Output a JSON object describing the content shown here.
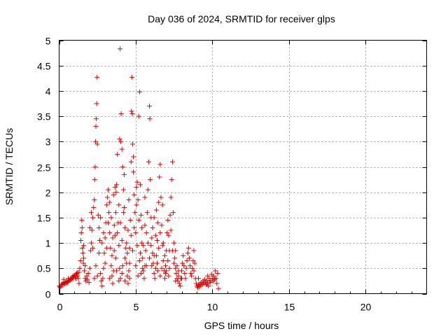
{
  "chart_data": {
    "type": "scatter",
    "title": "Day 036 of 2024, SRMTID for receiver glps",
    "xlabel": "GPS time / hours",
    "ylabel": "SRMTID / TECUs",
    "xlim": [
      0,
      24
    ],
    "ylim": [
      0,
      5
    ],
    "xticks": [
      0,
      5,
      10,
      15,
      20
    ],
    "xtick_labels": [
      "0",
      "5",
      "10",
      "15",
      "20"
    ],
    "yticks": [
      0,
      0.5,
      1,
      1.5,
      2,
      2.5,
      3,
      3.5,
      4,
      4.5,
      5
    ],
    "ytick_labels": [
      "0",
      "0.5",
      "1",
      "1.5",
      "2",
      "2.5",
      "3",
      "3.5",
      "4",
      "4.5",
      "5"
    ],
    "grid": true,
    "marker": "+",
    "marker_color": "#e00000",
    "series": [
      {
        "name": "SRMTID",
        "points": [
          [
            0.0,
            0.15
          ],
          [
            0.05,
            0.12
          ],
          [
            0.1,
            0.14
          ],
          [
            0.15,
            0.18
          ],
          [
            0.2,
            0.2
          ],
          [
            0.25,
            0.17
          ],
          [
            0.3,
            0.22
          ],
          [
            0.35,
            0.19
          ],
          [
            0.4,
            0.23
          ],
          [
            0.45,
            0.21
          ],
          [
            0.5,
            0.25
          ],
          [
            0.55,
            0.22
          ],
          [
            0.6,
            0.24
          ],
          [
            0.65,
            0.27
          ],
          [
            0.7,
            0.26
          ],
          [
            0.75,
            0.29
          ],
          [
            0.8,
            0.28
          ],
          [
            0.85,
            0.32
          ],
          [
            0.9,
            0.3
          ],
          [
            0.95,
            0.34
          ],
          [
            1.0,
            0.36
          ],
          [
            1.05,
            0.33
          ],
          [
            1.1,
            0.38
          ],
          [
            1.15,
            0.4
          ],
          [
            1.2,
            0.35
          ],
          [
            1.25,
            0.3
          ],
          [
            1.3,
            0.42
          ],
          [
            1.35,
            0.5
          ],
          [
            1.4,
            0.65
          ],
          [
            1.42,
            1.05
          ],
          [
            1.45,
            1.2
          ],
          [
            1.48,
            1.45
          ],
          [
            1.5,
            1.3
          ],
          [
            1.52,
            0.9
          ],
          [
            1.55,
            0.8
          ],
          [
            1.58,
            0.6
          ],
          [
            1.6,
            0.7
          ],
          [
            1.65,
            0.45
          ],
          [
            1.7,
            0.3
          ],
          [
            1.75,
            0.25
          ],
          [
            1.8,
            0.35
          ],
          [
            1.85,
            0.28
          ],
          [
            1.9,
            0.4
          ],
          [
            1.95,
            0.22
          ],
          [
            2.0,
            0.5
          ],
          [
            2.05,
            0.85
          ],
          [
            2.1,
            1.0
          ],
          [
            2.15,
            1.25
          ],
          [
            2.2,
            1.5
          ],
          [
            2.25,
            1.7
          ],
          [
            2.3,
            1.85
          ],
          [
            2.32,
            2.25
          ],
          [
            2.35,
            2.5
          ],
          [
            2.38,
            3.0
          ],
          [
            2.4,
            3.3
          ],
          [
            2.42,
            3.45
          ],
          [
            2.45,
            3.75
          ],
          [
            2.48,
            4.27
          ],
          [
            2.5,
            2.95
          ],
          [
            2.55,
            1.55
          ],
          [
            2.6,
            1.3
          ],
          [
            2.65,
            1.05
          ],
          [
            2.7,
            0.4
          ],
          [
            2.75,
            0.25
          ],
          [
            2.8,
            0.15
          ],
          [
            2.85,
            0.3
          ],
          [
            2.9,
            0.5
          ],
          [
            2.95,
            0.8
          ],
          [
            3.0,
            1.1
          ],
          [
            3.05,
            1.4
          ],
          [
            3.1,
            1.75
          ],
          [
            3.15,
            1.9
          ],
          [
            3.2,
            2.05
          ],
          [
            3.25,
            1.6
          ],
          [
            3.3,
            1.2
          ],
          [
            3.35,
            0.9
          ],
          [
            3.4,
            0.55
          ],
          [
            3.45,
            0.35
          ],
          [
            3.5,
            0.2
          ],
          [
            3.55,
            0.45
          ],
          [
            3.6,
            0.85
          ],
          [
            3.65,
            1.15
          ],
          [
            3.7,
            1.6
          ],
          [
            3.72,
            2.0
          ],
          [
            3.75,
            2.15
          ],
          [
            3.8,
            2.75
          ],
          [
            3.85,
            1.4
          ],
          [
            3.9,
            0.95
          ],
          [
            3.95,
            0.5
          ],
          [
            4.0,
            0.3
          ],
          [
            3.95,
            3.05
          ],
          [
            3.98,
            4.83
          ],
          [
            4.02,
            3.0
          ],
          [
            4.05,
            3.55
          ],
          [
            4.1,
            2.85
          ],
          [
            4.15,
            2.5
          ],
          [
            4.2,
            2.05
          ],
          [
            4.25,
            1.7
          ],
          [
            4.3,
            1.3
          ],
          [
            4.35,
            0.9
          ],
          [
            4.4,
            0.6
          ],
          [
            4.45,
            0.35
          ],
          [
            4.5,
            0.2
          ],
          [
            4.55,
            0.45
          ],
          [
            4.6,
            0.9
          ],
          [
            4.65,
            1.45
          ],
          [
            4.7,
            2.6
          ],
          [
            4.72,
            3.6
          ],
          [
            4.75,
            4.27
          ],
          [
            4.78,
            3.55
          ],
          [
            4.8,
            2.95
          ],
          [
            4.85,
            2.4
          ],
          [
            4.9,
            1.95
          ],
          [
            4.95,
            1.6
          ],
          [
            5.0,
            1.2
          ],
          [
            5.05,
            2.1
          ],
          [
            5.1,
            2.2
          ],
          [
            5.15,
            1.85
          ],
          [
            5.2,
            3.5
          ],
          [
            5.25,
            3.98
          ],
          [
            5.3,
            2.15
          ],
          [
            5.35,
            1.55
          ],
          [
            5.4,
            1.0
          ],
          [
            5.45,
            0.7
          ],
          [
            5.5,
            0.45
          ],
          [
            5.55,
            0.3
          ],
          [
            5.6,
            0.55
          ],
          [
            5.65,
            0.85
          ],
          [
            5.7,
            1.2
          ],
          [
            5.75,
            1.6
          ],
          [
            5.8,
            2.05
          ],
          [
            5.85,
            2.6
          ],
          [
            5.9,
            3.7
          ],
          [
            5.92,
            3.45
          ],
          [
            5.95,
            2.25
          ],
          [
            6.0,
            1.5
          ],
          [
            6.05,
            1.1
          ],
          [
            6.1,
            0.8
          ],
          [
            6.15,
            0.6
          ],
          [
            6.2,
            0.4
          ],
          [
            6.25,
            0.3
          ],
          [
            6.3,
            0.5
          ],
          [
            6.35,
            0.75
          ],
          [
            6.4,
            1.05
          ],
          [
            6.45,
            1.4
          ],
          [
            6.5,
            1.8
          ],
          [
            6.55,
            2.3
          ],
          [
            6.6,
            2.55
          ],
          [
            6.65,
            1.9
          ],
          [
            6.7,
            1.35
          ],
          [
            6.75,
            0.95
          ],
          [
            6.8,
            0.65
          ],
          [
            6.85,
            0.45
          ],
          [
            6.9,
            0.3
          ],
          [
            6.95,
            0.55
          ],
          [
            7.0,
            0.85
          ],
          [
            7.05,
            1.2
          ],
          [
            7.1,
            1.45
          ],
          [
            7.15,
            1.15
          ],
          [
            7.2,
            0.85
          ],
          [
            7.25,
            1.55
          ],
          [
            7.3,
            1.9
          ],
          [
            7.35,
            2.25
          ],
          [
            7.4,
            2.6
          ],
          [
            7.45,
            1.6
          ],
          [
            7.5,
            1.0
          ],
          [
            7.55,
            0.7
          ],
          [
            7.6,
            0.5
          ],
          [
            7.65,
            0.4
          ],
          [
            7.7,
            0.3
          ],
          [
            7.75,
            0.25
          ],
          [
            7.8,
            0.35
          ],
          [
            7.85,
            0.2
          ],
          [
            7.9,
            0.15
          ],
          [
            7.95,
            0.3
          ],
          [
            8.0,
            0.45
          ],
          [
            8.05,
            0.6
          ],
          [
            8.1,
            0.75
          ],
          [
            8.15,
            0.55
          ],
          [
            8.2,
            0.4
          ],
          [
            8.25,
            0.3
          ],
          [
            8.3,
            0.5
          ],
          [
            8.35,
            0.65
          ],
          [
            8.4,
            0.8
          ],
          [
            8.45,
            0.9
          ],
          [
            8.5,
            0.7
          ],
          [
            8.55,
            0.55
          ],
          [
            8.6,
            0.4
          ],
          [
            8.65,
            0.35
          ],
          [
            8.7,
            0.5
          ],
          [
            8.75,
            0.65
          ],
          [
            8.8,
            0.85
          ],
          [
            8.85,
            0.6
          ],
          [
            8.9,
            0.3
          ],
          [
            8.95,
            0.2
          ],
          [
            9.0,
            0.15
          ],
          [
            9.05,
            0.12
          ],
          [
            9.1,
            0.18
          ],
          [
            9.15,
            0.14
          ],
          [
            9.2,
            0.2
          ],
          [
            9.25,
            0.16
          ],
          [
            9.3,
            0.22
          ],
          [
            9.35,
            0.18
          ],
          [
            9.4,
            0.25
          ],
          [
            9.45,
            0.2
          ],
          [
            9.5,
            0.28
          ],
          [
            9.55,
            0.22
          ],
          [
            9.6,
            0.18
          ],
          [
            9.65,
            0.26
          ],
          [
            9.7,
            0.2
          ],
          [
            9.75,
            0.15
          ],
          [
            9.8,
            0.3
          ],
          [
            9.85,
            0.22
          ],
          [
            9.9,
            0.25
          ],
          [
            9.95,
            0.38
          ],
          [
            10.0,
            0.3
          ],
          [
            10.05,
            0.25
          ],
          [
            10.1,
            0.35
          ],
          [
            10.15,
            0.28
          ],
          [
            10.2,
            0.45
          ],
          [
            10.25,
            0.3
          ],
          [
            10.3,
            0.2
          ],
          [
            10.35,
            0.4
          ],
          [
            10.4,
            0.1
          ],
          [
            1.3,
            0.2
          ],
          [
            1.6,
            0.95
          ],
          [
            1.7,
            0.55
          ],
          [
            2.0,
            1.3
          ],
          [
            2.1,
            1.6
          ],
          [
            2.2,
            0.9
          ],
          [
            2.6,
            0.8
          ],
          [
            2.7,
            1.5
          ],
          [
            2.8,
            1.0
          ],
          [
            2.9,
            1.2
          ],
          [
            3.0,
            0.6
          ],
          [
            3.1,
            0.9
          ],
          [
            3.2,
            1.4
          ],
          [
            3.3,
            1.8
          ],
          [
            3.4,
            1.5
          ],
          [
            3.5,
            1.1
          ],
          [
            3.6,
            1.35
          ],
          [
            3.7,
            0.7
          ],
          [
            3.8,
            1.2
          ],
          [
            3.9,
            1.75
          ],
          [
            4.0,
            1.4
          ],
          [
            4.1,
            1.05
          ],
          [
            4.2,
            1.6
          ],
          [
            4.3,
            0.7
          ],
          [
            4.4,
            1.0
          ],
          [
            4.5,
            1.25
          ],
          [
            4.6,
            0.6
          ],
          [
            4.7,
            1.15
          ],
          [
            4.8,
            0.85
          ],
          [
            4.9,
            1.3
          ],
          [
            5.0,
            0.55
          ],
          [
            5.1,
            0.95
          ],
          [
            5.2,
            1.45
          ],
          [
            5.3,
            0.8
          ],
          [
            5.4,
            1.3
          ],
          [
            5.5,
            0.95
          ],
          [
            5.6,
            1.35
          ],
          [
            5.7,
            0.55
          ],
          [
            5.8,
            1.0
          ],
          [
            5.9,
            0.7
          ],
          [
            6.0,
            0.95
          ],
          [
            6.1,
            1.3
          ],
          [
            6.2,
            0.75
          ],
          [
            6.3,
            1.15
          ],
          [
            6.4,
            0.6
          ],
          [
            6.5,
            0.9
          ],
          [
            6.6,
            1.2
          ],
          [
            6.7,
            0.5
          ],
          [
            6.8,
            1.0
          ],
          [
            6.9,
            0.75
          ],
          [
            7.0,
            0.45
          ],
          [
            7.1,
            0.65
          ],
          [
            7.2,
            0.5
          ],
          [
            7.3,
            1.25
          ],
          [
            7.4,
            0.85
          ],
          [
            7.5,
            0.6
          ],
          [
            7.6,
            0.85
          ],
          [
            7.7,
            0.55
          ],
          [
            7.8,
            0.45
          ],
          [
            8.0,
            0.3
          ],
          [
            0.3,
            0.28
          ],
          [
            0.6,
            0.3
          ],
          [
            0.9,
            0.35
          ],
          [
            1.1,
            0.3
          ],
          [
            1.2,
            0.42
          ],
          [
            2.3,
            0.3
          ],
          [
            2.4,
            0.55
          ],
          [
            2.5,
            0.35
          ],
          [
            3.9,
            0.25
          ],
          [
            4.1,
            0.4
          ],
          [
            4.3,
            0.25
          ],
          [
            4.6,
            0.3
          ],
          [
            5.15,
            0.35
          ],
          [
            5.35,
            0.4
          ],
          [
            6.6,
            0.35
          ],
          [
            6.95,
            0.4
          ],
          [
            7.6,
            0.25
          ],
          [
            8.8,
            0.45
          ],
          [
            9.1,
            0.3
          ],
          [
            9.7,
            0.35
          ],
          [
            3.55,
            1.95
          ],
          [
            3.65,
            2.1
          ],
          [
            4.25,
            2.35
          ],
          [
            4.55,
            1.85
          ],
          [
            4.85,
            2.7
          ],
          [
            5.05,
            1.75
          ],
          [
            5.6,
            1.9
          ],
          [
            6.2,
            1.5
          ],
          [
            6.35,
            1.65
          ],
          [
            6.75,
            1.75
          ],
          [
            3.3,
            0.3
          ],
          [
            3.45,
            0.75
          ],
          [
            3.75,
            0.45
          ],
          [
            4.15,
            0.55
          ],
          [
            4.45,
            0.8
          ],
          [
            5.25,
            0.65
          ],
          [
            5.45,
            0.5
          ],
          [
            6.05,
            0.55
          ],
          [
            6.45,
            0.45
          ],
          [
            7.15,
            0.35
          ]
        ]
      }
    ]
  }
}
